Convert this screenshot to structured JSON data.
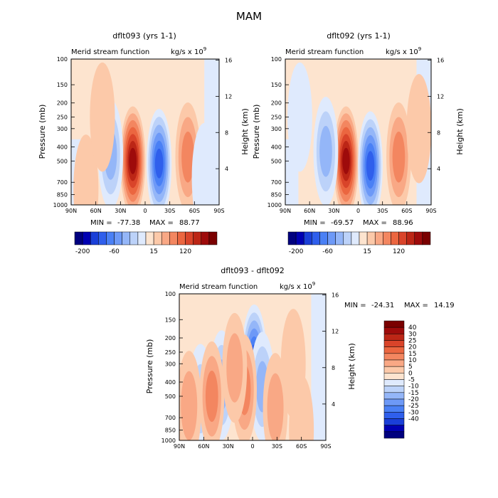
{
  "suptitle": "MAM",
  "colors": {
    "negative": [
      "#00007f",
      "#0000b2",
      "#1a3fd8",
      "#2f5fec",
      "#4a80f5",
      "#6d99f7",
      "#94b6f8",
      "#bcd2f9",
      "#dfeafd"
    ],
    "positive": [
      "#fde4cf",
      "#fcc9a9",
      "#f9a885",
      "#f38660",
      "#eb6640",
      "#d9442a",
      "#bc2616",
      "#9e0b0b",
      "#7a0000"
    ]
  },
  "chart_data": [
    {
      "type": "heatmap",
      "title": "dflt093 (yrs 1-1)",
      "subtitle": "Merid stream function",
      "units": "kg/s x 10",
      "units_exp": "9",
      "xlabel": "",
      "ylabel": "Pressure (mb)",
      "y2label": "Height (km)",
      "x_ticks": [
        "90N",
        "60N",
        "30N",
        "0",
        "30S",
        "60S",
        "90S"
      ],
      "y_ticks": [
        100,
        150,
        200,
        250,
        300,
        400,
        500,
        700,
        850,
        1000
      ],
      "ylim": [
        100,
        1000
      ],
      "y2_ticks": [
        16,
        12,
        8,
        4
      ],
      "stats": {
        "min_label": "MIN =",
        "min": "-77.38",
        "max_label": "MAX =",
        "max": "88.77"
      },
      "colorbar_labels": [
        "-200",
        "-60",
        "15",
        "120"
      ],
      "cells": [
        {
          "lat": 15,
          "p": 500,
          "sign": 1,
          "level": 7
        },
        {
          "lat": -17,
          "p": 520,
          "sign": -1,
          "level": 6
        },
        {
          "lat": 42,
          "p": 450,
          "sign": -1,
          "level": 3
        },
        {
          "lat": -52,
          "p": 470,
          "sign": 1,
          "level": 3
        },
        {
          "lat": 72,
          "p": 780,
          "sign": 1,
          "level": 1
        },
        {
          "lat": -72,
          "p": 650,
          "sign": -1,
          "level": 1
        },
        {
          "lat": 52,
          "p": 250,
          "sign": 1,
          "level": 1
        }
      ]
    },
    {
      "type": "heatmap",
      "title": "dflt092 (yrs 1-1)",
      "subtitle": "Merid stream function",
      "units": "kg/s x 10",
      "units_exp": "9",
      "xlabel": "",
      "ylabel": "Pressure (mb)",
      "y2label": "Height (km)",
      "x_ticks": [
        "90N",
        "60N",
        "30N",
        "0",
        "30S",
        "60S",
        "90S"
      ],
      "y_ticks": [
        100,
        150,
        200,
        250,
        300,
        400,
        500,
        700,
        850,
        1000
      ],
      "ylim": [
        100,
        1000
      ],
      "y2_ticks": [
        16,
        12,
        8,
        4
      ],
      "stats": {
        "min_label": "MIN =",
        "min": "-69.57",
        "max_label": "MAX =",
        "max": "88.96"
      },
      "colorbar_labels": [
        "-200",
        "-60",
        "15",
        "120"
      ],
      "cells": [
        {
          "lat": 15,
          "p": 500,
          "sign": 1,
          "level": 7
        },
        {
          "lat": -15,
          "p": 540,
          "sign": -1,
          "level": 6
        },
        {
          "lat": 40,
          "p": 430,
          "sign": -1,
          "level": 3
        },
        {
          "lat": -50,
          "p": 470,
          "sign": 1,
          "level": 3
        },
        {
          "lat": 72,
          "p": 250,
          "sign": -1,
          "level": 1
        },
        {
          "lat": -75,
          "p": 300,
          "sign": 1,
          "level": 1
        }
      ]
    },
    {
      "type": "heatmap",
      "title": "dflt093 - dflt092",
      "subtitle": "Merid stream function",
      "units": "kg/s x 10",
      "units_exp": "9",
      "xlabel": "",
      "ylabel": "Pressure (mb)",
      "y2label": "Height (km)",
      "x_ticks": [
        "90N",
        "60N",
        "30N",
        "0",
        "30S",
        "60S",
        "90S"
      ],
      "y_ticks": [
        100,
        150,
        200,
        250,
        300,
        400,
        500,
        700,
        850,
        1000
      ],
      "ylim": [
        100,
        1000
      ],
      "y2_ticks": [
        16,
        12,
        8,
        4
      ],
      "stats": {
        "min_label": "MIN =",
        "min": "-24.31",
        "max_label": "MAX =",
        "max": "14.19"
      },
      "colorbar_labels": [
        "40",
        "30",
        "25",
        "20",
        "15",
        "10",
        "5",
        "0",
        "-5",
        "-10",
        "-15",
        "-20",
        "-25",
        "-30",
        "-40"
      ],
      "cells": [
        {
          "lat": -2,
          "p": 280,
          "sign": -1,
          "level": 6
        },
        {
          "lat": -12,
          "p": 430,
          "sign": -1,
          "level": 3
        },
        {
          "lat": 38,
          "p": 420,
          "sign": -1,
          "level": 3
        },
        {
          "lat": 64,
          "p": 520,
          "sign": -1,
          "level": 2
        },
        {
          "lat": 10,
          "p": 450,
          "sign": 1,
          "level": 3
        },
        {
          "lat": 22,
          "p": 320,
          "sign": 1,
          "level": 2
        },
        {
          "lat": 50,
          "p": 500,
          "sign": 1,
          "level": 3
        },
        {
          "lat": 78,
          "p": 580,
          "sign": 1,
          "level": 2
        },
        {
          "lat": -28,
          "p": 600,
          "sign": 1,
          "level": 2
        },
        {
          "lat": -50,
          "p": 300,
          "sign": 1,
          "level": 1
        },
        {
          "lat": -60,
          "p": 850,
          "sign": 1,
          "level": 1
        }
      ]
    }
  ]
}
